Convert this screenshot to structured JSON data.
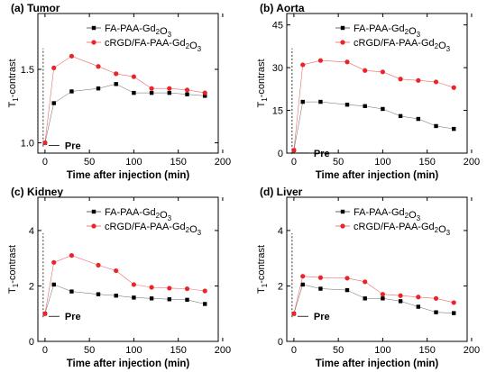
{
  "figure": {
    "xlabel": "Time after injection (min)",
    "ylabel_main": "T",
    "ylabel_sub": "1",
    "ylabel_rest": "-contrast",
    "pre_label": "Pre"
  },
  "chart_data": [
    {
      "type": "line",
      "title": "(a) Tumor",
      "xlabel": "Time after injection (min)",
      "ylabel": "T1-contrast",
      "xlim": [
        -8,
        195
      ],
      "ylim": [
        0.93,
        1.88
      ],
      "xticks": [
        0,
        50,
        100,
        150,
        200
      ],
      "yticks": [
        1.0,
        1.5
      ],
      "ytick_labels": [
        "1.0",
        "1.5"
      ],
      "legend_position": "top-right",
      "series": [
        {
          "name": "FA-PAA-Gd2O3",
          "color": "#000000",
          "marker": "square",
          "x": [
            0,
            10,
            30,
            60,
            80,
            100,
            120,
            140,
            160,
            180
          ],
          "y": [
            1.0,
            1.27,
            1.35,
            1.37,
            1.4,
            1.34,
            1.34,
            1.34,
            1.33,
            1.32
          ]
        },
        {
          "name": "cRGD/FA-PAA-Gd2O3",
          "color": "#e8262a",
          "marker": "circle",
          "x": [
            0,
            10,
            30,
            60,
            80,
            100,
            120,
            140,
            160,
            180
          ],
          "y": [
            1.0,
            1.51,
            1.59,
            1.52,
            1.47,
            1.45,
            1.37,
            1.37,
            1.36,
            1.34
          ]
        }
      ]
    },
    {
      "type": "line",
      "title": "(b) Aorta",
      "xlabel": "Time after injection (min)",
      "ylabel": "T1-contrast",
      "xlim": [
        -8,
        195
      ],
      "ylim": [
        0,
        49
      ],
      "xticks": [
        0,
        50,
        100,
        150,
        200
      ],
      "yticks": [
        0,
        15,
        30,
        45
      ],
      "ytick_labels": [
        "0",
        "15",
        "30",
        "45"
      ],
      "legend_position": "top-right",
      "series": [
        {
          "name": "FA-PAA-Gd2O3",
          "color": "#000000",
          "marker": "square",
          "x": [
            0,
            10,
            30,
            60,
            80,
            100,
            120,
            140,
            160,
            180
          ],
          "y": [
            1.0,
            18.0,
            18.0,
            17.0,
            16.5,
            15.5,
            13.0,
            12.0,
            9.5,
            8.5
          ]
        },
        {
          "name": "cRGD/FA-PAA-Gd2O3",
          "color": "#e8262a",
          "marker": "circle",
          "x": [
            0,
            10,
            30,
            60,
            80,
            100,
            120,
            140,
            160,
            180
          ],
          "y": [
            1.0,
            31.0,
            32.5,
            32.0,
            29.0,
            28.5,
            26.0,
            25.5,
            25.0,
            23.0
          ]
        }
      ]
    },
    {
      "type": "line",
      "title": "(c) Kidney",
      "xlabel": "Time after injection (min)",
      "ylabel": "T1-contrast",
      "xlim": [
        -8,
        195
      ],
      "ylim": [
        0,
        5.2
      ],
      "xticks": [
        0,
        50,
        100,
        150,
        200
      ],
      "yticks": [
        0,
        2,
        4
      ],
      "ytick_labels": [
        "0",
        "2",
        "4"
      ],
      "legend_position": "top-right",
      "series": [
        {
          "name": "FA-PAA-Gd2O3",
          "color": "#000000",
          "marker": "square",
          "x": [
            0,
            10,
            30,
            60,
            80,
            100,
            120,
            140,
            160,
            180
          ],
          "y": [
            1.0,
            2.05,
            1.8,
            1.7,
            1.65,
            1.58,
            1.55,
            1.52,
            1.5,
            1.35
          ]
        },
        {
          "name": "cRGD/FA-PAA-Gd2O3",
          "color": "#e8262a",
          "marker": "circle",
          "x": [
            0,
            10,
            30,
            60,
            80,
            100,
            120,
            140,
            160,
            180
          ],
          "y": [
            1.0,
            2.85,
            3.1,
            2.75,
            2.55,
            2.05,
            1.95,
            1.92,
            1.9,
            1.82
          ]
        }
      ]
    },
    {
      "type": "line",
      "title": "(d) Liver",
      "xlabel": "Time after injection (min)",
      "ylabel": "T1-contrast",
      "xlim": [
        -8,
        195
      ],
      "ylim": [
        0,
        5.2
      ],
      "xticks": [
        0,
        50,
        100,
        150,
        200
      ],
      "yticks": [
        0,
        2,
        4
      ],
      "ytick_labels": [
        "0",
        "2",
        "4"
      ],
      "legend_position": "top-right",
      "series": [
        {
          "name": "FA-PAA-Gd2O3",
          "color": "#000000",
          "marker": "square",
          "x": [
            0,
            10,
            30,
            60,
            80,
            100,
            120,
            140,
            160,
            180
          ],
          "y": [
            1.0,
            2.05,
            1.9,
            1.85,
            1.55,
            1.55,
            1.45,
            1.25,
            1.05,
            1.02
          ]
        },
        {
          "name": "cRGD/FA-PAA-Gd2O3",
          "color": "#e8262a",
          "marker": "circle",
          "x": [
            0,
            10,
            30,
            60,
            80,
            100,
            120,
            140,
            160,
            180
          ],
          "y": [
            1.0,
            2.35,
            2.3,
            2.28,
            2.15,
            1.7,
            1.65,
            1.6,
            1.55,
            1.4
          ]
        }
      ]
    }
  ]
}
